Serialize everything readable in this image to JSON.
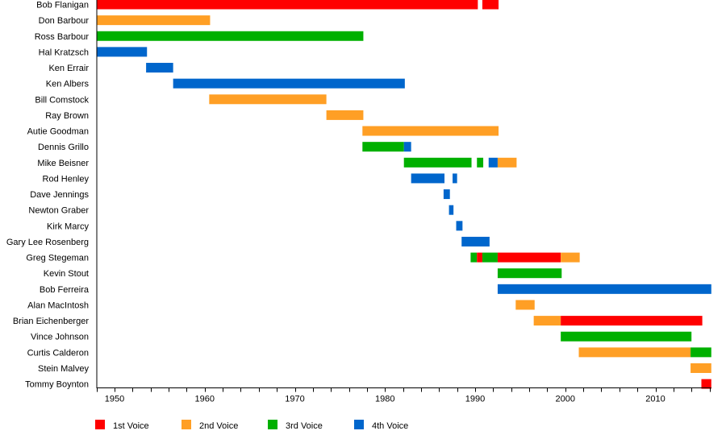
{
  "chart_data": {
    "type": "timeline",
    "title": "",
    "xlabel": "",
    "ylabel": "",
    "xlim": [
      1948,
      2016.2
    ],
    "x_major_ticks": [
      1950,
      1960,
      1970,
      1980,
      1990,
      2000,
      2010
    ],
    "x_minor_tick_step": 2,
    "grid": false,
    "legend_position": "bottom",
    "legend": [
      {
        "key": "v1",
        "label": "1st Voice",
        "color": "#FF0000"
      },
      {
        "key": "v2",
        "label": "2nd Voice",
        "color": "#FF9F25"
      },
      {
        "key": "v3",
        "label": "3rd Voice",
        "color": "#00B000"
      },
      {
        "key": "v4",
        "label": "4th Voice",
        "color": "#0066CC"
      }
    ],
    "rows": [
      {
        "name": "Bob Flanigan",
        "segments": [
          {
            "voice": "v1",
            "start": 1948,
            "end": 1990.3
          },
          {
            "voice": "v1",
            "start": 1990.8,
            "end": 1992.6
          }
        ]
      },
      {
        "name": "Don Barbour",
        "segments": [
          {
            "voice": "v2",
            "start": 1948,
            "end": 1960.6
          }
        ]
      },
      {
        "name": "Ross Barbour",
        "segments": [
          {
            "voice": "v3",
            "start": 1948,
            "end": 1977.6
          }
        ]
      },
      {
        "name": "Hal Kratzsch",
        "segments": [
          {
            "voice": "v4",
            "start": 1948,
            "end": 1953.6
          }
        ]
      },
      {
        "name": "Ken Errair",
        "segments": [
          {
            "voice": "v4",
            "start": 1953.5,
            "end": 1956.5
          }
        ]
      },
      {
        "name": "Ken Albers",
        "segments": [
          {
            "voice": "v4",
            "start": 1956.5,
            "end": 1982.2
          }
        ]
      },
      {
        "name": "Bill Comstock",
        "segments": [
          {
            "voice": "v2",
            "start": 1960.5,
            "end": 1973.5
          }
        ]
      },
      {
        "name": "Ray Brown",
        "segments": [
          {
            "voice": "v2",
            "start": 1973.5,
            "end": 1977.6
          }
        ]
      },
      {
        "name": "Autie Goodman",
        "segments": [
          {
            "voice": "v2",
            "start": 1977.5,
            "end": 1992.6
          }
        ]
      },
      {
        "name": "Dennis Grillo",
        "segments": [
          {
            "voice": "v3",
            "start": 1977.5,
            "end": 1982.1
          },
          {
            "voice": "v4",
            "start": 1982.1,
            "end": 1982.9
          }
        ]
      },
      {
        "name": "Mike Beisner",
        "segments": [
          {
            "voice": "v3",
            "start": 1982.1,
            "end": 1989.6
          },
          {
            "voice": "v3",
            "start": 1990.2,
            "end": 1990.9
          },
          {
            "voice": "v4",
            "start": 1991.5,
            "end": 1992.5
          },
          {
            "voice": "v2",
            "start": 1992.5,
            "end": 1994.6
          }
        ]
      },
      {
        "name": "Rod Henley",
        "segments": [
          {
            "voice": "v4",
            "start": 1982.9,
            "end": 1986.6
          },
          {
            "voice": "v4",
            "start": 1987.5,
            "end": 1988.0
          }
        ]
      },
      {
        "name": "Dave Jennings",
        "segments": [
          {
            "voice": "v4",
            "start": 1986.5,
            "end": 1987.2
          }
        ]
      },
      {
        "name": "Newton Graber",
        "segments": [
          {
            "voice": "v4",
            "start": 1987.1,
            "end": 1987.6
          }
        ]
      },
      {
        "name": "Kirk Marcy",
        "segments": [
          {
            "voice": "v4",
            "start": 1987.9,
            "end": 1988.6
          }
        ]
      },
      {
        "name": "Gary Lee Rosenberg",
        "segments": [
          {
            "voice": "v4",
            "start": 1988.5,
            "end": 1991.6
          }
        ]
      },
      {
        "name": "Greg Stegeman",
        "segments": [
          {
            "voice": "v3",
            "start": 1989.5,
            "end": 1990.2
          },
          {
            "voice": "v1",
            "start": 1990.2,
            "end": 1990.8
          },
          {
            "voice": "v3",
            "start": 1990.8,
            "end": 1992.5
          },
          {
            "voice": "v1",
            "start": 1992.5,
            "end": 1999.5
          },
          {
            "voice": "v2",
            "start": 1999.5,
            "end": 2001.6
          }
        ]
      },
      {
        "name": "Kevin Stout",
        "segments": [
          {
            "voice": "v3",
            "start": 1992.5,
            "end": 1999.6
          }
        ]
      },
      {
        "name": "Bob Ferreira",
        "segments": [
          {
            "voice": "v4",
            "start": 1992.5,
            "end": 2016.2
          }
        ]
      },
      {
        "name": "Alan MacIntosh",
        "segments": [
          {
            "voice": "v2",
            "start": 1994.5,
            "end": 1996.6
          }
        ]
      },
      {
        "name": "Brian Eichenberger",
        "segments": [
          {
            "voice": "v2",
            "start": 1996.5,
            "end": 1999.5
          },
          {
            "voice": "v1",
            "start": 1999.5,
            "end": 2015.2
          }
        ]
      },
      {
        "name": "Vince Johnson",
        "segments": [
          {
            "voice": "v3",
            "start": 1999.5,
            "end": 2014.0
          }
        ]
      },
      {
        "name": "Curtis Calderon",
        "segments": [
          {
            "voice": "v2",
            "start": 2001.5,
            "end": 2013.9
          },
          {
            "voice": "v3",
            "start": 2013.9,
            "end": 2016.2
          }
        ]
      },
      {
        "name": "Stein Malvey",
        "segments": [
          {
            "voice": "v2",
            "start": 2013.9,
            "end": 2016.2
          }
        ]
      },
      {
        "name": "Tommy Boynton",
        "segments": [
          {
            "voice": "v1",
            "start": 2015.1,
            "end": 2016.2
          }
        ]
      }
    ]
  }
}
